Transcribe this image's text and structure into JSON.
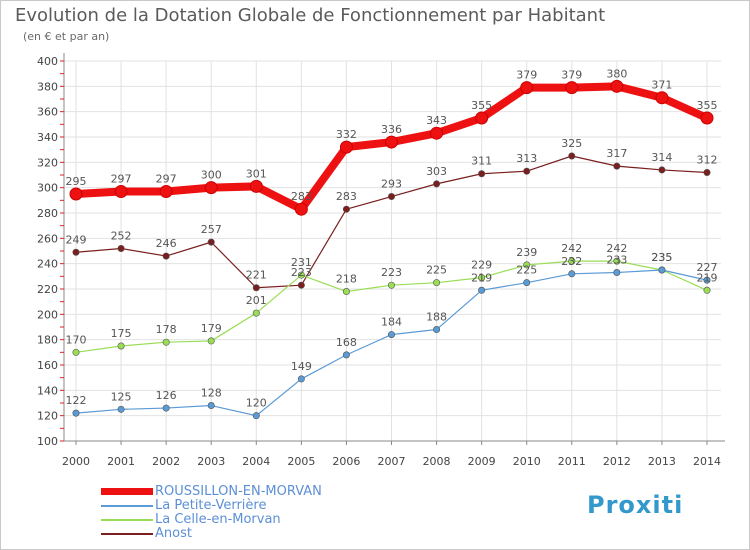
{
  "header": {
    "title": "Evolution de la Dotation Globale de Fonctionnement par Habitant",
    "subtitle": "(en € et par an)"
  },
  "logo": {
    "text": "Proxiti"
  },
  "colors": {
    "series1": "#ee1111",
    "series2": "#5b9bd5",
    "series3": "#99dd55",
    "series4": "#7a1f1f",
    "axis": "#888888",
    "grid": "#e2e2e2",
    "tick_text": "#444444",
    "label_text": "#555555",
    "legend_text": "#5c8fd6",
    "logo_primary": "#3399cc",
    "logo_accent": "#ff9900"
  },
  "chart_data": {
    "type": "line",
    "title": "Evolution de la Dotation Globale de Fonctionnement par Habitant",
    "subtitle": "(en € et par an)",
    "xlabel": "",
    "ylabel": "",
    "x": [
      "2000",
      "2001",
      "2002",
      "2003",
      "2004",
      "2005",
      "2006",
      "2007",
      "2008",
      "2009",
      "2010",
      "2011",
      "2012",
      "2013",
      "2014"
    ],
    "ylim": [
      100,
      400
    ],
    "yticks": [
      100,
      120,
      140,
      160,
      180,
      200,
      220,
      240,
      260,
      280,
      300,
      320,
      340,
      360,
      380,
      400
    ],
    "grid": true,
    "legend_position": "bottom-left",
    "series": [
      {
        "name": "ROUSSILLON-EN-MORVAN",
        "color": "#ee1111",
        "values": [
          295,
          297,
          297,
          300,
          301,
          283,
          332,
          336,
          343,
          355,
          379,
          379,
          380,
          371,
          355
        ]
      },
      {
        "name": "La Petite-Verrière",
        "color": "#5b9bd5",
        "values": [
          122,
          125,
          126,
          128,
          120,
          149,
          168,
          184,
          188,
          219,
          225,
          232,
          233,
          235,
          227
        ]
      },
      {
        "name": "La Celle-en-Morvan",
        "color": "#99dd55",
        "values": [
          170,
          175,
          178,
          179,
          201,
          231,
          218,
          223,
          225,
          229,
          239,
          242,
          242,
          235,
          219
        ]
      },
      {
        "name": "Anost",
        "color": "#7a1f1f",
        "values": [
          249,
          252,
          246,
          257,
          221,
          223,
          283,
          293,
          303,
          311,
          313,
          325,
          317,
          314,
          312
        ]
      }
    ]
  }
}
